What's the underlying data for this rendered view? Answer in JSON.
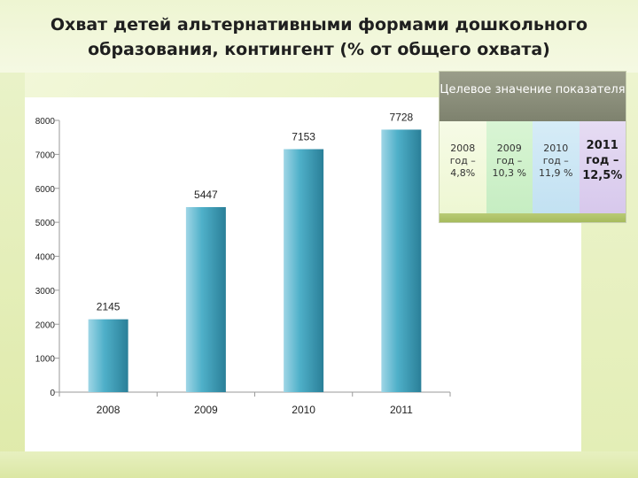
{
  "slide": {
    "title": "Охват детей альтернативными формами дошкольного образования, контингент (% от общего охвата)"
  },
  "target_box": {
    "header": "Целевое значение показателя",
    "cells": [
      {
        "text": "2008\nгод –\n4,8%",
        "emphasis": false
      },
      {
        "text": "2009\nгод –\n10,3 %",
        "emphasis": false
      },
      {
        "text": "2010\nгод –\n11,9 %",
        "emphasis": false
      },
      {
        "text": "2011\nгод –\n12,5%",
        "emphasis": true
      }
    ]
  },
  "colors": {
    "bar_light": "#9fd6e6",
    "bar_mid": "#4fb0c9",
    "bar_dark": "#2a7f98",
    "axis": "#9a9a9a"
  },
  "chart_data": {
    "type": "bar",
    "categories": [
      "2008",
      "2009",
      "2010",
      "2011"
    ],
    "values": [
      2145,
      5447,
      7153,
      7728
    ],
    "data_labels": [
      "2145",
      "5447",
      "7153",
      "7728"
    ],
    "ylim": [
      0,
      8000
    ],
    "yticks": [
      0,
      1000,
      2000,
      3000,
      4000,
      5000,
      6000,
      7000,
      8000
    ],
    "ytick_labels": [
      "0",
      "1000",
      "2000",
      "3000",
      "4000",
      "5000",
      "6000",
      "7000",
      "8000"
    ],
    "grid": false,
    "legend": "none"
  }
}
